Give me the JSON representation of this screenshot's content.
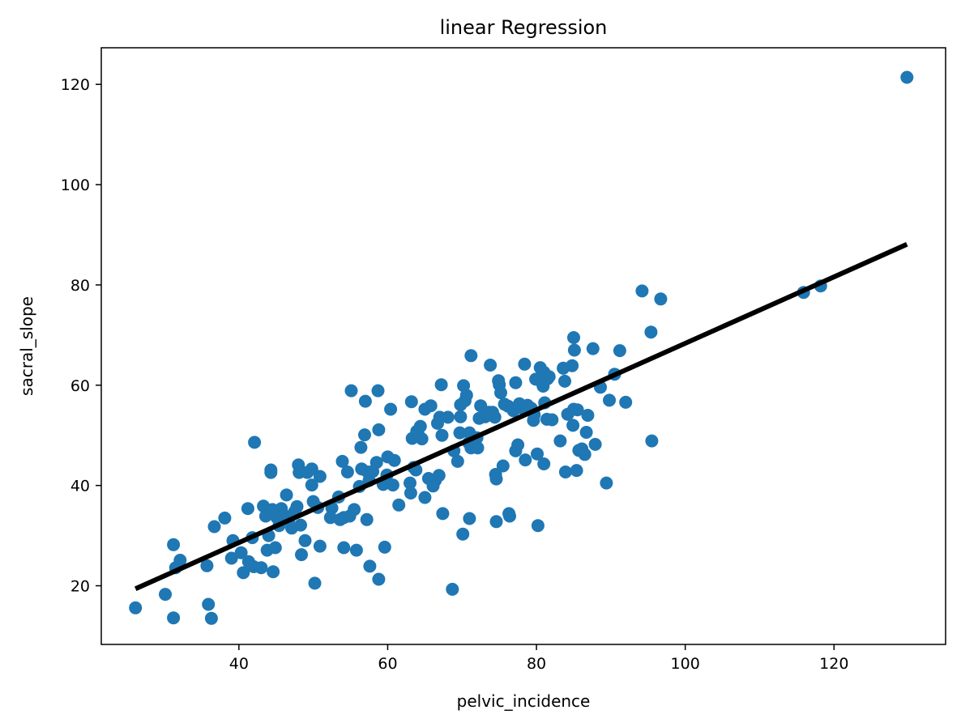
{
  "chart_data": {
    "type": "scatter",
    "title": "linear Regression",
    "xlabel": "pelvic_incidence",
    "ylabel": "sacral_slope",
    "xlim": [
      21.5,
      135.0
    ],
    "ylim": [
      8.3,
      127.3
    ],
    "x_ticks": [
      40,
      60,
      80,
      100,
      120
    ],
    "y_ticks": [
      20,
      40,
      60,
      80,
      100,
      120
    ],
    "grid": false,
    "point_color": "#1f77b4",
    "line_color": "#000000",
    "series": [
      {
        "type": "scatter",
        "points": [
          [
            26.1,
            15.6
          ],
          [
            30.1,
            18.3
          ],
          [
            31.2,
            13.6
          ],
          [
            31.2,
            28.2
          ],
          [
            31.5,
            23.6
          ],
          [
            32.1,
            25.1
          ],
          [
            35.7,
            24.0
          ],
          [
            35.9,
            16.3
          ],
          [
            36.3,
            13.5
          ],
          [
            36.7,
            31.8
          ],
          [
            38.1,
            33.5
          ],
          [
            39.0,
            25.5
          ],
          [
            39.2,
            29.0
          ],
          [
            40.3,
            26.6
          ],
          [
            40.6,
            22.6
          ],
          [
            41.2,
            35.4
          ],
          [
            41.3,
            24.8
          ],
          [
            41.8,
            29.6
          ],
          [
            42.0,
            23.8
          ],
          [
            42.1,
            48.6
          ],
          [
            43.0,
            23.6
          ],
          [
            43.3,
            35.9
          ],
          [
            43.6,
            33.9
          ],
          [
            43.8,
            27.1
          ],
          [
            44.0,
            30.0
          ],
          [
            44.3,
            43.1
          ],
          [
            44.3,
            42.6
          ],
          [
            44.5,
            35.2
          ],
          [
            44.6,
            22.8
          ],
          [
            44.9,
            27.6
          ],
          [
            45.1,
            33.6
          ],
          [
            45.4,
            32.0
          ],
          [
            45.7,
            35.4
          ],
          [
            46.1,
            34.0
          ],
          [
            46.4,
            38.1
          ],
          [
            46.7,
            33.2
          ],
          [
            47.1,
            31.5
          ],
          [
            47.5,
            34.8
          ],
          [
            47.8,
            35.8
          ],
          [
            48.0,
            44.1
          ],
          [
            48.1,
            42.6
          ],
          [
            48.3,
            32.1
          ],
          [
            48.4,
            26.2
          ],
          [
            48.9,
            29.0
          ],
          [
            49.2,
            42.6
          ],
          [
            49.8,
            40.1
          ],
          [
            49.8,
            43.3
          ],
          [
            50.0,
            36.8
          ],
          [
            50.2,
            20.5
          ],
          [
            50.6,
            35.6
          ],
          [
            50.9,
            41.8
          ],
          [
            50.9,
            27.9
          ],
          [
            52.3,
            33.6
          ],
          [
            52.5,
            35.5
          ],
          [
            53.4,
            37.7
          ],
          [
            53.6,
            33.2
          ],
          [
            53.9,
            44.8
          ],
          [
            54.1,
            33.6
          ],
          [
            54.1,
            27.6
          ],
          [
            54.6,
            42.7
          ],
          [
            54.9,
            33.9
          ],
          [
            55.1,
            58.9
          ],
          [
            55.5,
            35.2
          ],
          [
            55.8,
            27.1
          ],
          [
            56.2,
            39.8
          ],
          [
            56.4,
            47.6
          ],
          [
            56.5,
            43.3
          ],
          [
            56.9,
            50.1
          ],
          [
            57.0,
            56.8
          ],
          [
            57.2,
            33.2
          ],
          [
            57.3,
            42.7
          ],
          [
            57.5,
            41.0
          ],
          [
            57.6,
            23.9
          ],
          [
            58.0,
            42.8
          ],
          [
            58.5,
            44.6
          ],
          [
            58.7,
            58.9
          ],
          [
            58.8,
            51.1
          ],
          [
            58.8,
            21.3
          ],
          [
            59.4,
            40.2
          ],
          [
            59.6,
            27.7
          ],
          [
            59.9,
            42.1
          ],
          [
            60.0,
            45.7
          ],
          [
            60.4,
            55.2
          ],
          [
            60.7,
            40.1
          ],
          [
            60.9,
            45.0
          ],
          [
            61.5,
            36.1
          ],
          [
            63.0,
            40.5
          ],
          [
            63.1,
            38.5
          ],
          [
            63.2,
            56.7
          ],
          [
            63.3,
            49.4
          ],
          [
            63.5,
            43.6
          ],
          [
            63.8,
            43.1
          ],
          [
            63.9,
            50.8
          ],
          [
            64.2,
            49.9
          ],
          [
            64.4,
            51.8
          ],
          [
            64.6,
            49.3
          ],
          [
            65.0,
            55.2
          ],
          [
            65.0,
            37.6
          ],
          [
            65.5,
            41.4
          ],
          [
            65.8,
            55.9
          ],
          [
            66.1,
            39.9
          ],
          [
            66.4,
            41.0
          ],
          [
            66.7,
            52.4
          ],
          [
            66.9,
            42.0
          ],
          [
            67.0,
            53.6
          ],
          [
            67.2,
            60.1
          ],
          [
            67.3,
            50.0
          ],
          [
            67.4,
            34.4
          ],
          [
            68.1,
            53.6
          ],
          [
            68.7,
            19.3
          ],
          [
            68.9,
            46.9
          ],
          [
            69.4,
            44.8
          ],
          [
            69.7,
            50.5
          ],
          [
            69.8,
            53.7
          ],
          [
            69.8,
            56.1
          ],
          [
            70.1,
            30.3
          ],
          [
            70.2,
            59.9
          ],
          [
            70.4,
            56.9
          ],
          [
            70.6,
            58.0
          ],
          [
            70.9,
            48.5
          ],
          [
            71.0,
            50.5
          ],
          [
            71.0,
            33.4
          ],
          [
            71.2,
            47.5
          ],
          [
            71.2,
            65.9
          ],
          [
            72.0,
            49.5
          ],
          [
            72.1,
            47.5
          ],
          [
            72.3,
            53.4
          ],
          [
            72.5,
            55.9
          ],
          [
            73.1,
            53.7
          ],
          [
            73.6,
            54.6
          ],
          [
            73.8,
            64.0
          ],
          [
            74.1,
            54.6
          ],
          [
            74.4,
            53.6
          ],
          [
            74.5,
            42.2
          ],
          [
            74.6,
            32.8
          ],
          [
            74.6,
            41.3
          ],
          [
            74.9,
            60.9
          ],
          [
            75.0,
            60.1
          ],
          [
            75.2,
            58.5
          ],
          [
            75.5,
            43.9
          ],
          [
            75.7,
            56.2
          ],
          [
            76.2,
            55.8
          ],
          [
            76.3,
            34.4
          ],
          [
            76.4,
            33.9
          ],
          [
            76.9,
            54.9
          ],
          [
            77.2,
            60.5
          ],
          [
            77.2,
            46.9
          ],
          [
            77.5,
            48.1
          ],
          [
            77.7,
            56.3
          ],
          [
            78.1,
            55.4
          ],
          [
            78.4,
            55.3
          ],
          [
            78.4,
            64.2
          ],
          [
            78.5,
            45.1
          ],
          [
            78.8,
            56.0
          ],
          [
            79.3,
            55.4
          ],
          [
            79.6,
            53.0
          ],
          [
            79.7,
            54.1
          ],
          [
            79.9,
            61.2
          ],
          [
            80.1,
            46.3
          ],
          [
            80.2,
            32.0
          ],
          [
            80.5,
            63.5
          ],
          [
            80.7,
            60.6
          ],
          [
            80.9,
            59.8
          ],
          [
            81.0,
            62.6
          ],
          [
            81.0,
            44.3
          ],
          [
            81.1,
            56.5
          ],
          [
            81.4,
            53.2
          ],
          [
            81.5,
            61.3
          ],
          [
            81.7,
            61.7
          ],
          [
            82.1,
            53.1
          ],
          [
            83.2,
            48.9
          ],
          [
            83.6,
            63.4
          ],
          [
            83.8,
            60.8
          ],
          [
            83.9,
            42.7
          ],
          [
            84.2,
            54.2
          ],
          [
            84.8,
            63.9
          ],
          [
            84.9,
            52.0
          ],
          [
            85.0,
            55.2
          ],
          [
            85.0,
            69.5
          ],
          [
            85.1,
            67.0
          ],
          [
            85.4,
            43.0
          ],
          [
            85.5,
            55.1
          ],
          [
            85.7,
            47.0
          ],
          [
            86.1,
            47.3
          ],
          [
            86.5,
            46.2
          ],
          [
            86.7,
            50.6
          ],
          [
            86.9,
            54.0
          ],
          [
            87.6,
            67.3
          ],
          [
            87.9,
            48.2
          ],
          [
            88.6,
            59.6
          ],
          [
            89.4,
            40.5
          ],
          [
            89.8,
            57.0
          ],
          [
            90.5,
            62.2
          ],
          [
            91.2,
            66.9
          ],
          [
            92.0,
            56.6
          ],
          [
            94.2,
            78.8
          ],
          [
            95.4,
            70.6
          ],
          [
            95.5,
            48.9
          ],
          [
            96.7,
            77.2
          ],
          [
            115.9,
            78.5
          ],
          [
            118.2,
            79.8
          ],
          [
            129.8,
            121.4
          ]
        ]
      },
      {
        "type": "line",
        "points": [
          [
            26.1,
            19.4
          ],
          [
            129.8,
            88.1
          ]
        ]
      }
    ]
  }
}
